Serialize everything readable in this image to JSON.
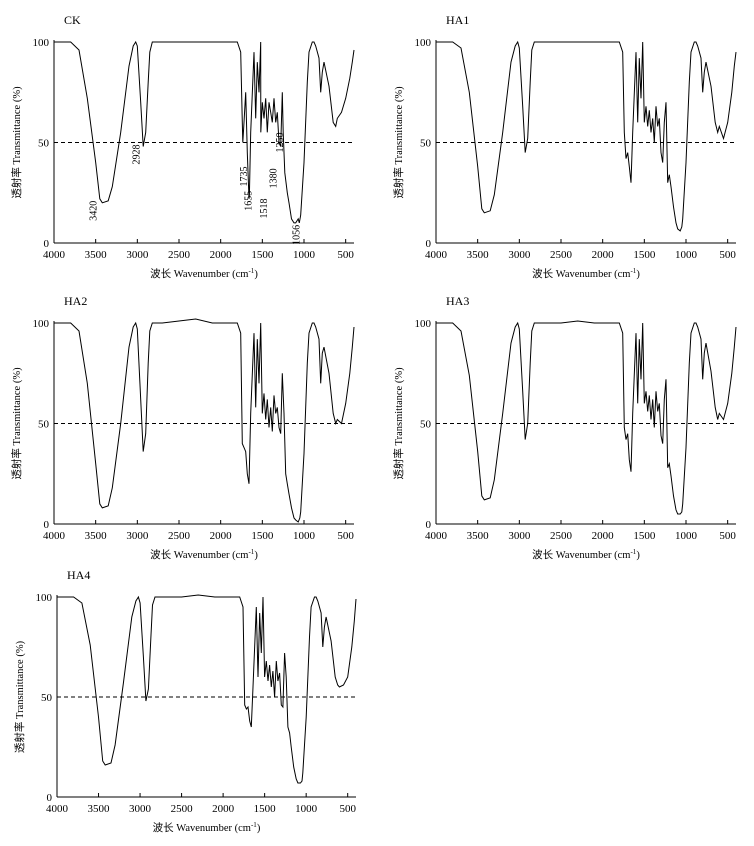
{
  "chart_data": [
    {
      "type": "line",
      "panel_label": "CK",
      "xlabel": "波长 Wavenumber (cm",
      "xlabel_sup": "-1",
      "xlabel_close": ")",
      "ylabel": "透射率 Transmittance (%)",
      "xlim": [
        4000,
        400
      ],
      "ylim": [
        0,
        100
      ],
      "x_ticks": [
        "4000",
        "3500",
        "3000",
        "2500",
        "2000",
        "1500",
        "1000",
        "500"
      ],
      "y_ticks": [
        "0",
        "50",
        "100"
      ],
      "reference_line": 50,
      "grid": false,
      "series": [
        {
          "x": [
            4000,
            3800,
            3700,
            3600,
            3500,
            3450,
            3420,
            3350,
            3300,
            3200,
            3100,
            3050,
            3020,
            3000,
            2960,
            2930,
            2900,
            2870,
            2850,
            2820,
            2700,
            2500,
            2300,
            2100,
            1900,
            1800,
            1760,
            1740,
            1735,
            1720,
            1700,
            1680,
            1660,
            1655,
            1640,
            1600,
            1580,
            1560,
            1540,
            1520,
            1518,
            1500,
            1480,
            1460,
            1440,
            1420,
            1400,
            1380,
            1360,
            1340,
            1320,
            1300,
            1280,
            1260,
            1250,
            1230,
            1200,
            1180,
            1150,
            1120,
            1100,
            1070,
            1056,
            1040,
            1000,
            960,
            940,
            900,
            880,
            860,
            820,
            800,
            780,
            760,
            700,
            650,
            620,
            600,
            550,
            500,
            450,
            420,
            400
          ],
          "y": [
            100,
            100,
            96,
            72,
            40,
            22,
            20,
            21,
            28,
            55,
            88,
            98,
            100,
            98,
            70,
            48,
            55,
            80,
            95,
            100,
            100,
            100,
            100,
            100,
            100,
            100,
            95,
            60,
            50,
            60,
            75,
            45,
            22,
            24,
            55,
            95,
            62,
            90,
            75,
            100,
            55,
            70,
            62,
            72,
            55,
            70,
            65,
            60,
            72,
            60,
            65,
            50,
            48,
            75,
            55,
            35,
            25,
            20,
            12,
            10,
            10,
            12,
            10,
            14,
            40,
            80,
            95,
            100,
            100,
            98,
            92,
            75,
            85,
            90,
            78,
            60,
            58,
            62,
            65,
            72,
            82,
            90,
            96
          ]
        }
      ],
      "annotations": [
        "3420",
        "2928",
        "1735",
        "1655",
        "1518",
        "1380",
        "1250",
        "1056"
      ]
    },
    {
      "type": "line",
      "panel_label": "HA1",
      "xlabel": "波长 Wavenumber (cm",
      "xlabel_sup": "-1",
      "xlabel_close": ")",
      "ylabel": "透射率 Transmittance (%)",
      "xlim": [
        4000,
        400
      ],
      "ylim": [
        0,
        100
      ],
      "x_ticks": [
        "4000",
        "3500",
        "3000",
        "2500",
        "2000",
        "1500",
        "1000",
        "500"
      ],
      "y_ticks": [
        "0",
        "50",
        "100"
      ],
      "reference_line": 50,
      "grid": false,
      "series": [
        {
          "x": [
            4000,
            3800,
            3700,
            3600,
            3500,
            3450,
            3420,
            3350,
            3300,
            3200,
            3100,
            3050,
            3020,
            3000,
            2960,
            2930,
            2900,
            2870,
            2850,
            2820,
            2700,
            2500,
            2300,
            2100,
            1900,
            1800,
            1760,
            1740,
            1720,
            1700,
            1680,
            1660,
            1640,
            1600,
            1580,
            1560,
            1540,
            1520,
            1500,
            1480,
            1460,
            1440,
            1420,
            1400,
            1380,
            1360,
            1340,
            1320,
            1300,
            1280,
            1260,
            1240,
            1220,
            1200,
            1180,
            1150,
            1120,
            1100,
            1070,
            1050,
            1040,
            1000,
            960,
            940,
            900,
            880,
            860,
            820,
            800,
            780,
            760,
            700,
            650,
            620,
            600,
            550,
            500,
            450,
            420,
            400
          ],
          "y": [
            100,
            100,
            97,
            75,
            38,
            17,
            15,
            16,
            24,
            55,
            90,
            98,
            100,
            97,
            68,
            45,
            52,
            80,
            96,
            100,
            100,
            100,
            100,
            100,
            100,
            100,
            95,
            55,
            42,
            45,
            38,
            30,
            55,
            95,
            60,
            92,
            72,
            100,
            60,
            68,
            58,
            66,
            55,
            62,
            50,
            68,
            58,
            62,
            45,
            40,
            60,
            70,
            30,
            34,
            28,
            18,
            10,
            7,
            6,
            8,
            12,
            40,
            80,
            95,
            100,
            100,
            98,
            92,
            75,
            85,
            90,
            78,
            60,
            55,
            58,
            52,
            60,
            75,
            88,
            95
          ]
        }
      ],
      "annotations": []
    },
    {
      "type": "line",
      "panel_label": "HA2",
      "xlabel": "波长 Wavenumber (cm",
      "xlabel_sup": "-1",
      "xlabel_close": ")",
      "ylabel": "透射率 Transmittance (%)",
      "xlim": [
        4000,
        400
      ],
      "ylim": [
        0,
        100
      ],
      "x_ticks": [
        "4000",
        "3500",
        "3000",
        "2500",
        "2000",
        "1500",
        "1000",
        "500"
      ],
      "y_ticks": [
        "0",
        "50",
        "100"
      ],
      "reference_line": 50,
      "grid": false,
      "series": [
        {
          "x": [
            4000,
            3800,
            3700,
            3600,
            3500,
            3450,
            3420,
            3350,
            3300,
            3200,
            3100,
            3050,
            3020,
            3000,
            2960,
            2930,
            2900,
            2870,
            2850,
            2820,
            2700,
            2500,
            2300,
            2100,
            1900,
            1800,
            1760,
            1740,
            1720,
            1700,
            1680,
            1660,
            1640,
            1600,
            1580,
            1560,
            1540,
            1520,
            1500,
            1480,
            1460,
            1440,
            1420,
            1400,
            1380,
            1360,
            1340,
            1320,
            1300,
            1280,
            1260,
            1240,
            1220,
            1200,
            1180,
            1150,
            1120,
            1100,
            1070,
            1050,
            1040,
            1000,
            960,
            940,
            900,
            880,
            860,
            820,
            800,
            780,
            760,
            700,
            650,
            620,
            600,
            550,
            500,
            450,
            420,
            400
          ],
          "y": [
            100,
            100,
            96,
            70,
            30,
            10,
            8,
            9,
            18,
            50,
            88,
            98,
            100,
            97,
            62,
            36,
            45,
            80,
            96,
            100,
            100,
            101,
            102,
            100,
            100,
            100,
            95,
            40,
            38,
            36,
            25,
            20,
            55,
            95,
            58,
            92,
            70,
            100,
            55,
            65,
            52,
            62,
            48,
            58,
            46,
            64,
            55,
            58,
            48,
            45,
            75,
            55,
            25,
            20,
            15,
            8,
            3,
            2,
            1,
            3,
            6,
            35,
            80,
            95,
            100,
            100,
            98,
            92,
            70,
            85,
            88,
            75,
            55,
            50,
            52,
            50,
            60,
            75,
            88,
            98
          ]
        }
      ],
      "annotations": []
    },
    {
      "type": "line",
      "panel_label": "HA3",
      "xlabel": "波长 Wavenumber (cm",
      "xlabel_sup": "-1",
      "xlabel_close": ")",
      "ylabel": "透射率 Transmittance (%)",
      "xlim": [
        4000,
        400
      ],
      "ylim": [
        0,
        100
      ],
      "x_ticks": [
        "4000",
        "3500",
        "3000",
        "2500",
        "2000",
        "1500",
        "1000",
        "500"
      ],
      "y_ticks": [
        "0",
        "50",
        "100"
      ],
      "reference_line": 50,
      "grid": false,
      "series": [
        {
          "x": [
            4000,
            3800,
            3700,
            3600,
            3500,
            3450,
            3420,
            3350,
            3300,
            3200,
            3100,
            3050,
            3020,
            3000,
            2960,
            2930,
            2900,
            2870,
            2850,
            2820,
            2700,
            2500,
            2300,
            2100,
            1900,
            1800,
            1760,
            1740,
            1720,
            1700,
            1680,
            1660,
            1640,
            1600,
            1580,
            1560,
            1540,
            1520,
            1500,
            1480,
            1460,
            1440,
            1420,
            1400,
            1380,
            1360,
            1340,
            1320,
            1300,
            1280,
            1260,
            1240,
            1220,
            1200,
            1180,
            1150,
            1120,
            1100,
            1070,
            1050,
            1040,
            1000,
            960,
            940,
            900,
            880,
            860,
            820,
            800,
            780,
            760,
            700,
            650,
            620,
            600,
            550,
            500,
            450,
            420,
            400
          ],
          "y": [
            100,
            100,
            96,
            74,
            36,
            14,
            12,
            13,
            22,
            55,
            90,
            98,
            100,
            97,
            66,
            42,
            50,
            80,
            96,
            100,
            100,
            100,
            101,
            100,
            100,
            100,
            95,
            48,
            42,
            45,
            32,
            26,
            55,
            95,
            60,
            92,
            72,
            100,
            60,
            66,
            56,
            64,
            52,
            62,
            48,
            66,
            56,
            60,
            44,
            40,
            62,
            72,
            28,
            30,
            24,
            14,
            7,
            5,
            5,
            6,
            10,
            38,
            80,
            95,
            100,
            100,
            98,
            92,
            72,
            85,
            90,
            76,
            58,
            52,
            55,
            52,
            60,
            75,
            88,
            98
          ]
        }
      ],
      "annotations": []
    },
    {
      "type": "line",
      "panel_label": "HA4",
      "xlabel": "波长 Wavenumber (cm",
      "xlabel_sup": "-1",
      "xlabel_close": ")",
      "ylabel": "透射率 Transmittance (%)",
      "xlim": [
        4000,
        400
      ],
      "ylim": [
        0,
        100
      ],
      "x_ticks": [
        "4000",
        "3500",
        "3000",
        "2500",
        "2000",
        "1500",
        "1000",
        "500"
      ],
      "y_ticks": [
        "0",
        "50",
        "100"
      ],
      "reference_line": 50,
      "grid": false,
      "series": [
        {
          "x": [
            4000,
            3800,
            3700,
            3600,
            3500,
            3450,
            3420,
            3350,
            3300,
            3200,
            3100,
            3050,
            3020,
            3000,
            2960,
            2930,
            2900,
            2870,
            2850,
            2820,
            2700,
            2500,
            2300,
            2100,
            1900,
            1800,
            1760,
            1740,
            1720,
            1700,
            1680,
            1660,
            1640,
            1600,
            1580,
            1560,
            1540,
            1520,
            1500,
            1480,
            1460,
            1440,
            1420,
            1400,
            1380,
            1360,
            1340,
            1320,
            1300,
            1280,
            1260,
            1240,
            1220,
            1200,
            1180,
            1150,
            1120,
            1100,
            1070,
            1050,
            1040,
            1000,
            960,
            940,
            900,
            880,
            860,
            820,
            800,
            780,
            760,
            700,
            650,
            620,
            600,
            550,
            500,
            450,
            420,
            400
          ],
          "y": [
            100,
            100,
            97,
            76,
            40,
            18,
            16,
            17,
            26,
            57,
            90,
            98,
            100,
            97,
            70,
            48,
            54,
            80,
            96,
            100,
            100,
            100,
            101,
            100,
            100,
            100,
            95,
            46,
            44,
            45,
            38,
            35,
            55,
            95,
            60,
            92,
            72,
            100,
            60,
            68,
            58,
            66,
            55,
            63,
            50,
            68,
            58,
            62,
            46,
            45,
            72,
            60,
            35,
            32,
            25,
            15,
            9,
            7,
            7,
            8,
            12,
            40,
            80,
            95,
            100,
            100,
            98,
            92,
            75,
            85,
            90,
            78,
            60,
            56,
            55,
            56,
            60,
            75,
            88,
            99
          ]
        }
      ],
      "annotations": []
    }
  ]
}
